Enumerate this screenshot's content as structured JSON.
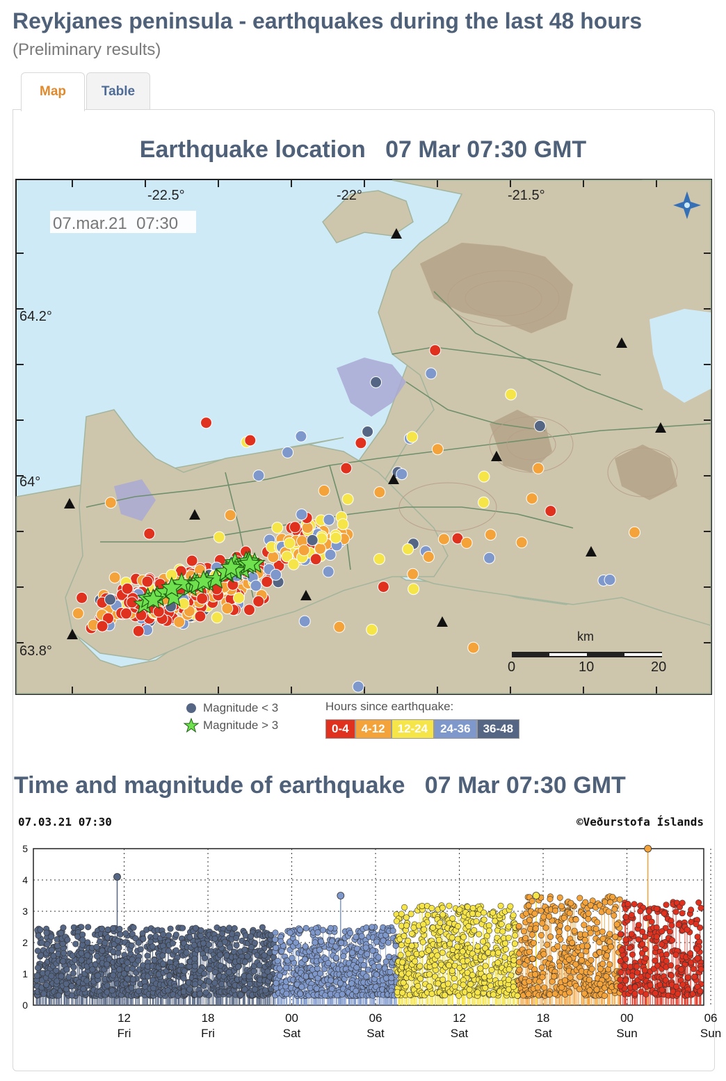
{
  "page": {
    "title": "Reykjanes peninsula - earthquakes during the last 48 hours",
    "subtitle": "(Preliminary results)"
  },
  "tabs": [
    {
      "label": "Map",
      "active": true
    },
    {
      "label": "Table",
      "active": false
    }
  ],
  "map": {
    "heading": "Earthquake location   07 Mar 07:30 GMT",
    "timestamp": "07.mar.21  07:30",
    "lon_labels": [
      "-22.5°",
      "-22°",
      "-21.5°"
    ],
    "lat_labels": [
      "64.2°",
      "64°",
      "63.8°"
    ],
    "scale": {
      "unit": "km",
      "labels": [
        "0",
        "10",
        "20"
      ]
    },
    "colors": {
      "sea": "#cfeaf7",
      "land": "#cdc5ac",
      "mountain": "#b3a086",
      "lava": "#a9a9d4",
      "road": "#6e8f6c"
    }
  },
  "legend": {
    "dot_label": "Magnitude < 3",
    "star_label": "Magnitude > 3",
    "title": "Hours since earthquake:",
    "bins": [
      {
        "label": "0-4",
        "color": "#e0301e"
      },
      {
        "label": "4-12",
        "color": "#f4a23a"
      },
      {
        "label": "12-24",
        "color": "#f6e548"
      },
      {
        "label": "24-36",
        "color": "#7e98cc"
      },
      {
        "label": "36-48",
        "color": "#556684"
      }
    ]
  },
  "chart_heading": "Time and magnitude of earthquake   07 Mar 07:30 GMT",
  "chart_data": {
    "type": "scatter",
    "title": "07.03.21 07:30",
    "credit": "©Veðurstofa Íslands",
    "ylim": [
      0,
      5
    ],
    "yticks": [
      "0",
      "1",
      "2",
      "3",
      "4",
      "5"
    ],
    "xtick_labels": [
      {
        "hour": "12",
        "day": "Fri"
      },
      {
        "hour": "18",
        "day": "Fri"
      },
      {
        "hour": "00",
        "day": "Sat"
      },
      {
        "hour": "06",
        "day": "Sat"
      },
      {
        "hour": "12",
        "day": "Sat"
      },
      {
        "hour": "18",
        "day": "Sat"
      },
      {
        "hour": "00",
        "day": "Sun"
      },
      {
        "hour": "06",
        "day": "Sun"
      }
    ],
    "grid": true,
    "notable_events": [
      {
        "time": "Fri 12:00",
        "magnitude": 4.1
      },
      {
        "time": "Sat 04:00",
        "magnitude": 3.5
      },
      {
        "time": "Sat 18:00",
        "magnitude": 3.5
      },
      {
        "time": "Sun 02:00",
        "magnitude": 5.0
      }
    ],
    "series": [
      {
        "name": "36-48",
        "color": "#556684",
        "typical_magnitude": [
          0.3,
          2.5
        ]
      },
      {
        "name": "24-36",
        "color": "#7e98cc",
        "typical_magnitude": [
          0.3,
          2.5
        ]
      },
      {
        "name": "12-24",
        "color": "#f6e548",
        "typical_magnitude": [
          0.3,
          3.2
        ]
      },
      {
        "name": "4-12",
        "color": "#f4a23a",
        "typical_magnitude": [
          0.3,
          3.5
        ]
      },
      {
        "name": "0-4",
        "color": "#e0301e",
        "typical_magnitude": [
          0.3,
          3.3
        ]
      }
    ]
  }
}
